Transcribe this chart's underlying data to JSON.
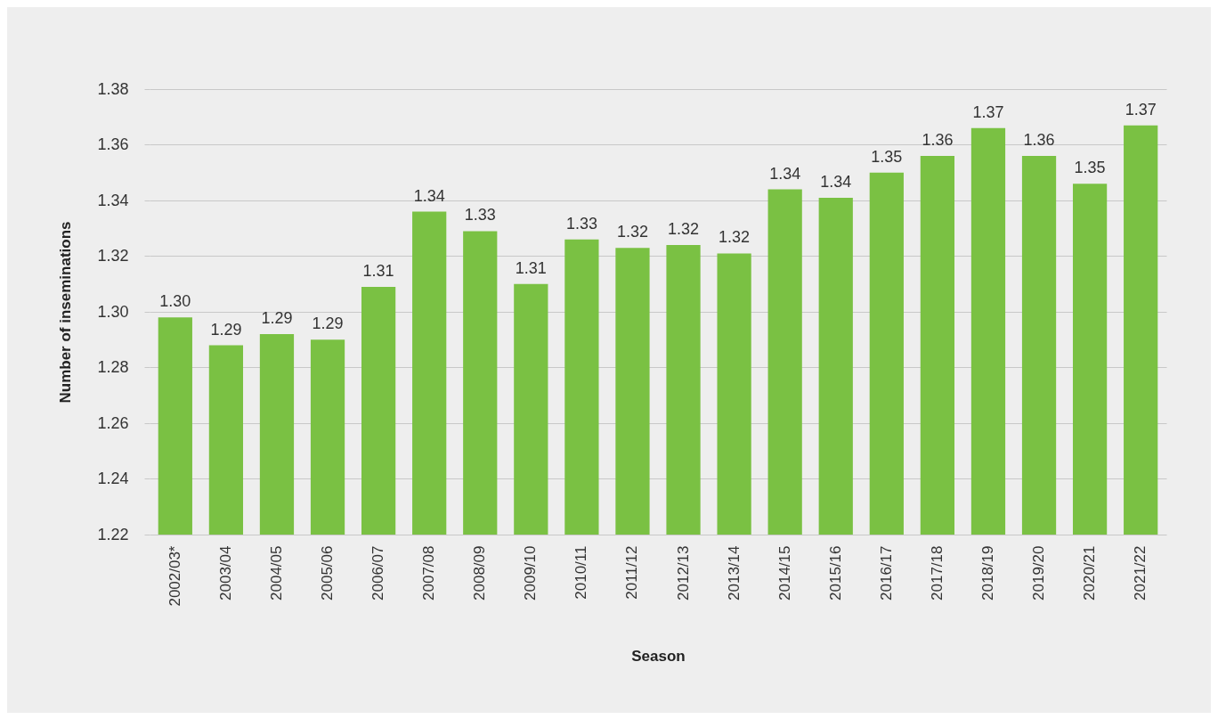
{
  "chart_data": {
    "type": "bar",
    "xlabel": "Season",
    "ylabel": "Number of inseminations",
    "categories": [
      "2002/03*",
      "2003/04",
      "2004/05",
      "2005/06",
      "2006/07",
      "2007/08",
      "2008/09",
      "2009/10",
      "2010/11",
      "2011/12",
      "2012/13",
      "2013/14",
      "2014/15",
      "2015/16",
      "2016/17",
      "2017/18",
      "2018/19",
      "2019/20",
      "2020/21",
      "2021/22"
    ],
    "values": [
      1.298,
      1.288,
      1.292,
      1.29,
      1.309,
      1.336,
      1.329,
      1.31,
      1.326,
      1.323,
      1.324,
      1.321,
      1.344,
      1.341,
      1.35,
      1.356,
      1.366,
      1.356,
      1.346,
      1.367
    ],
    "value_labels": [
      "1.30",
      "1.29",
      "1.29",
      "1.29",
      "1.31",
      "1.34",
      "1.33",
      "1.31",
      "1.33",
      "1.32",
      "1.32",
      "1.32",
      "1.34",
      "1.34",
      "1.35",
      "1.36",
      "1.37",
      "1.36",
      "1.35",
      "1.37"
    ],
    "color": "#7ac143",
    "ylim": [
      1.22,
      1.38
    ],
    "yticks": [
      {
        "value": 1.22,
        "label": "1.22"
      },
      {
        "value": 1.24,
        "label": "1.24"
      },
      {
        "value": 1.26,
        "label": "1.26"
      },
      {
        "value": 1.28,
        "label": "1.28"
      },
      {
        "value": 1.3,
        "label": "1.30"
      },
      {
        "value": 1.32,
        "label": "1.32"
      },
      {
        "value": 1.34,
        "label": "1.34"
      },
      {
        "value": 1.36,
        "label": "1.36"
      },
      {
        "value": 1.38,
        "label": "1.38"
      }
    ],
    "grid": "y"
  }
}
